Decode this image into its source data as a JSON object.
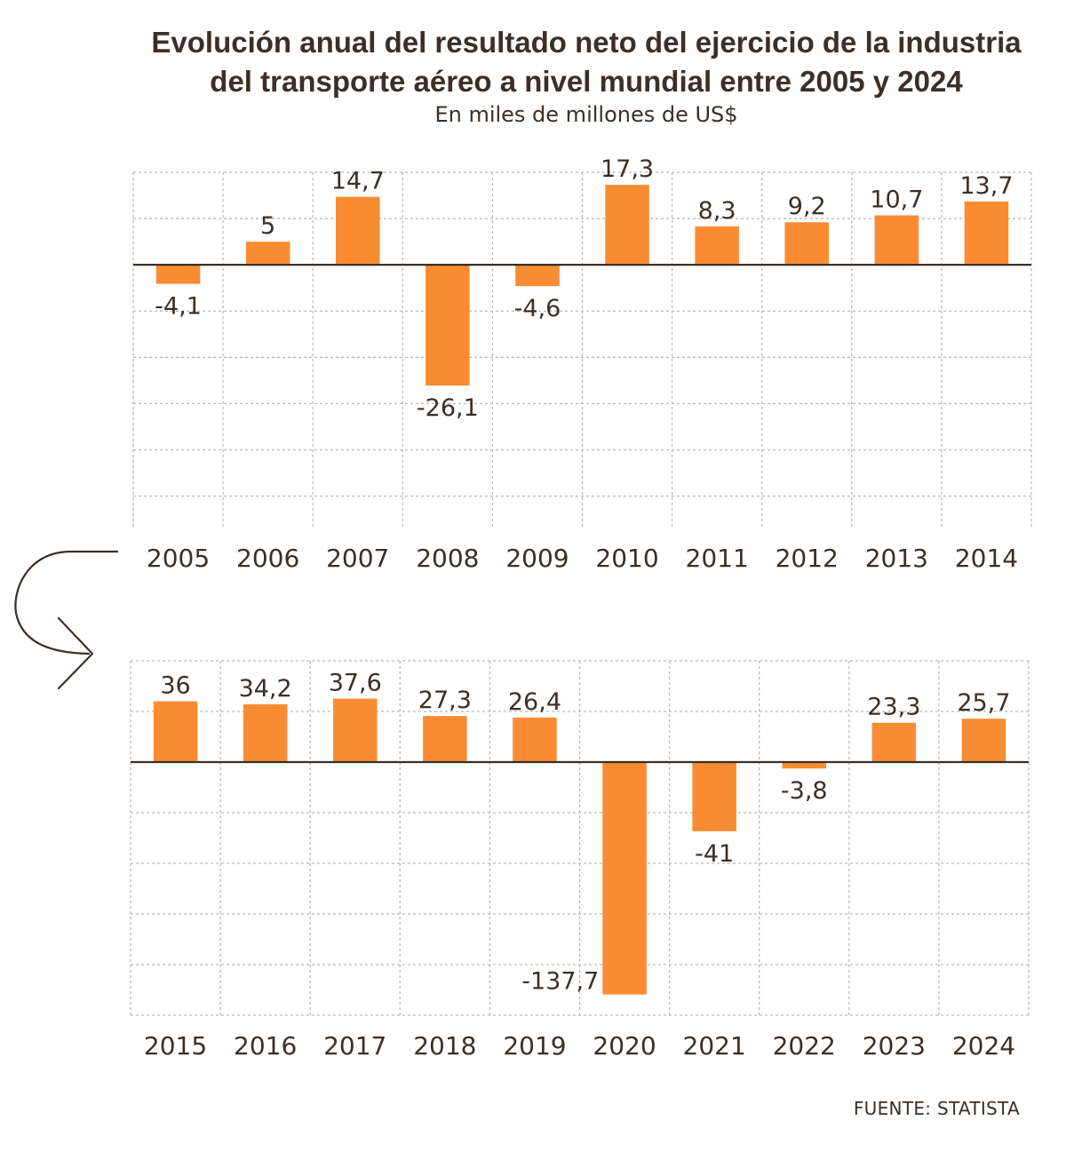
{
  "title_lines": [
    "Evolución anual del resultado neto del ejercicio de la industria",
    "del transporte aéreo a nivel mundial entre 2005 y 2024"
  ],
  "subtitle": "En miles de millones de US$",
  "source": "FUENTE: STATISTA",
  "colors": {
    "bar": "#f98c32",
    "grid": "#b9b9b9",
    "zero_line": "#3b2f27",
    "text": "#3b2f27",
    "arrow": "#3b2f27"
  },
  "chart_data": [
    {
      "type": "bar",
      "categories": [
        "2005",
        "2006",
        "2007",
        "2008",
        "2009",
        "2010",
        "2011",
        "2012",
        "2013",
        "2014"
      ],
      "values": [
        -4.1,
        5,
        14.7,
        -26.1,
        -4.6,
        17.3,
        8.3,
        9.2,
        10.7,
        13.7
      ],
      "value_labels": [
        "-4,1",
        "5",
        "14,7",
        "-26,1",
        "-4,6",
        "17,3",
        "8,3",
        "9,2",
        "10,7",
        "13,7"
      ],
      "ylim": [
        -57,
        20
      ],
      "grid": true
    },
    {
      "type": "bar",
      "categories": [
        "2015",
        "2016",
        "2017",
        "2018",
        "2019",
        "2020",
        "2021",
        "2022",
        "2023",
        "2024"
      ],
      "values": [
        36,
        34.2,
        37.6,
        27.3,
        26.4,
        -137.7,
        -41,
        -3.8,
        23.3,
        25.7
      ],
      "value_labels": [
        "36",
        "34,2",
        "37,6",
        "27,3",
        "26,4",
        "-137,7",
        "-41",
        "-3,8",
        "23,3",
        "25,7"
      ],
      "ylim": [
        -150,
        60
      ],
      "grid": true
    }
  ]
}
